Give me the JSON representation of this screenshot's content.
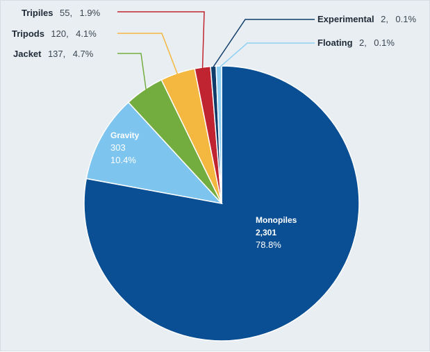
{
  "chart_data": {
    "type": "pie",
    "slices": [
      {
        "key": "monopiles",
        "name": "Monopiles",
        "value": 2301,
        "value_label": "2,301",
        "percent_label": "78.8%",
        "color": "#0a4f93"
      },
      {
        "key": "gravity",
        "name": "Gravity",
        "value": 303,
        "value_label": "303",
        "percent_label": "10.4%",
        "color": "#7dc4ee"
      },
      {
        "key": "jacket",
        "name": "Jacket",
        "value": 137,
        "value_label": "137,",
        "percent_label": "4.7%",
        "color": "#74ad3f"
      },
      {
        "key": "tripods",
        "name": "Tripods",
        "value": 120,
        "value_label": "120,",
        "percent_label": "4.1%",
        "color": "#f4b73f"
      },
      {
        "key": "tripiles",
        "name": "Tripiles",
        "value": 55,
        "value_label": "55,",
        "percent_label": "1.9%",
        "color": "#bf2430"
      },
      {
        "key": "experimental",
        "name": "Experimental",
        "value": 2,
        "value_label": "2,",
        "percent_label": "0.1%",
        "color": "#0f3d6b"
      },
      {
        "key": "floating",
        "name": "Floating",
        "value": 2,
        "value_label": "2,",
        "percent_label": "0.1%",
        "color": "#8fd0f2"
      }
    ]
  }
}
